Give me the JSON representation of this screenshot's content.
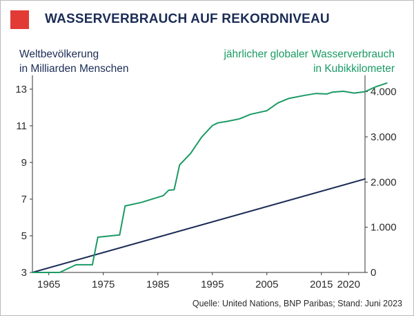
{
  "header": {
    "title": "WASSERVERBRAUCH AUF REKORDNIVEAU"
  },
  "colors": {
    "accent_square": "#e23b36",
    "navy": "#1b2c55",
    "green": "#1a9a64",
    "text": "#2b2b2b"
  },
  "labels": {
    "left_axis": [
      "Weltbevölkerung",
      "in Milliarden Menschen"
    ],
    "right_axis": [
      "jährlicher globaler Wasserverbrauch",
      "in Kubikkilometer"
    ]
  },
  "footer": {
    "source": "Quelle: United Nations, BNP Paribas; Stand: Juni 2023"
  },
  "chart_data": {
    "type": "line",
    "grid": false,
    "legend": "none",
    "x_ticks": [
      1965,
      1975,
      1985,
      1995,
      2005,
      2015,
      2020
    ],
    "x_range": [
      1962,
      2023
    ],
    "y_left": {
      "range": [
        3,
        13.6
      ],
      "ticks": [
        3,
        5,
        7,
        9,
        11,
        13
      ],
      "tick_labels": [
        "3",
        "5",
        "7",
        "9",
        "11",
        "13"
      ]
    },
    "y_right": {
      "range": [
        0,
        4300
      ],
      "ticks": [
        0,
        1000,
        2000,
        3000,
        4000
      ],
      "tick_labels": [
        "0",
        "1.000",
        "2.000",
        "3.000",
        "4.000"
      ]
    },
    "series": [
      {
        "axis": "left",
        "color": "#1b2c55",
        "points": [
          [
            1962,
            3.0
          ],
          [
            2023,
            8.1
          ]
        ]
      },
      {
        "axis": "right",
        "color": "#1a9a64",
        "points": [
          [
            1962,
            0
          ],
          [
            1967,
            0
          ],
          [
            1970,
            170
          ],
          [
            1973,
            170
          ],
          [
            1974,
            780
          ],
          [
            1978,
            830
          ],
          [
            1979,
            1470
          ],
          [
            1982,
            1550
          ],
          [
            1986,
            1700
          ],
          [
            1987,
            1820
          ],
          [
            1988,
            1830
          ],
          [
            1989,
            2380
          ],
          [
            1991,
            2630
          ],
          [
            1993,
            2990
          ],
          [
            1995,
            3250
          ],
          [
            1996,
            3310
          ],
          [
            1998,
            3350
          ],
          [
            2000,
            3400
          ],
          [
            2002,
            3500
          ],
          [
            2005,
            3580
          ],
          [
            2007,
            3750
          ],
          [
            2009,
            3850
          ],
          [
            2012,
            3920
          ],
          [
            2014,
            3960
          ],
          [
            2016,
            3950
          ],
          [
            2017,
            3990
          ],
          [
            2019,
            4010
          ],
          [
            2021,
            3970
          ],
          [
            2023,
            4000
          ],
          [
            2025,
            4110
          ],
          [
            2027,
            4190
          ]
        ]
      }
    ]
  }
}
